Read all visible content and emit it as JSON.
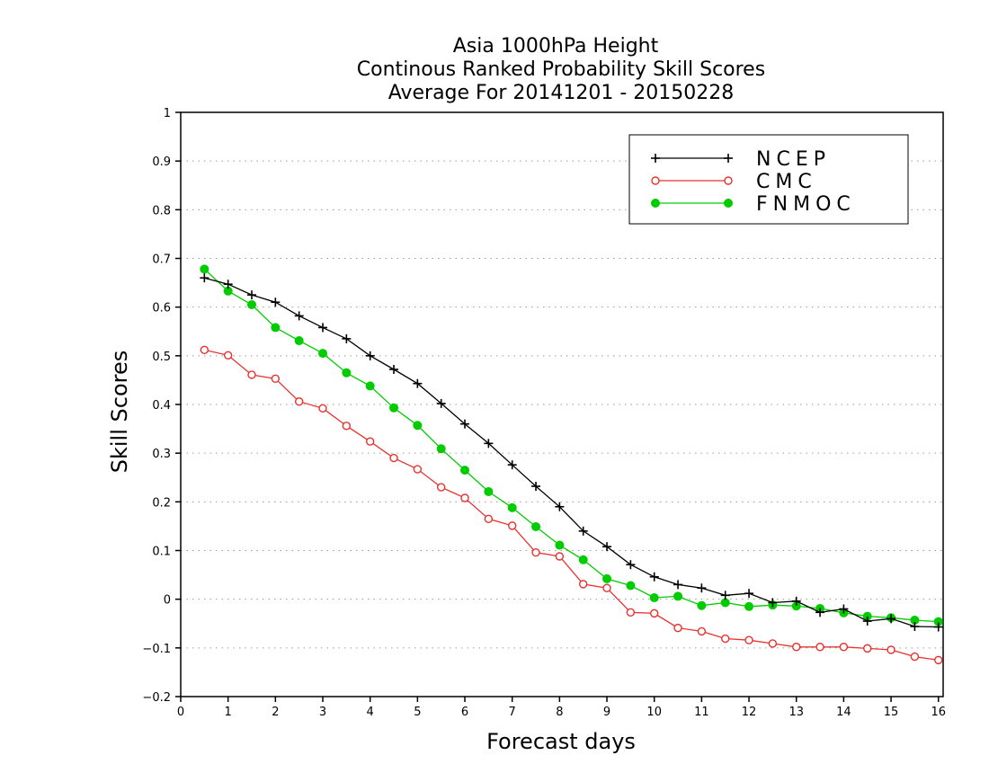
{
  "chart_data": {
    "type": "line",
    "title": [
      "Asia 1000hPa Height",
      "Continous Ranked Probability Skill Scores",
      "Average For 20141201 - 20150228"
    ],
    "xlabel": "Forecast days",
    "ylabel": "Skill Scores",
    "xlim": [
      0,
      16.1
    ],
    "ylim": [
      -0.2,
      1
    ],
    "xticks": [
      0,
      1,
      2,
      3,
      4,
      5,
      6,
      7,
      8,
      9,
      10,
      11,
      12,
      13,
      14,
      15,
      16
    ],
    "yticks": [
      -0.2,
      -0.1,
      0,
      0.1,
      0.2,
      0.3,
      0.4,
      0.5,
      0.6,
      0.7,
      0.8,
      0.9,
      1
    ],
    "ytick_labels": [
      "−0.2",
      "−0.1",
      "0",
      "0.1",
      "0.2",
      "0.3",
      "0.4",
      "0.5",
      "0.6",
      "0.7",
      "0.8",
      "0.9",
      "1"
    ],
    "grid": "horizontal dotted",
    "legend_position": "top-right",
    "x": [
      0.5,
      1,
      1.5,
      2,
      2.5,
      3,
      3.5,
      4,
      4.5,
      5,
      5.5,
      6,
      6.5,
      7,
      7.5,
      8,
      8.5,
      9,
      9.5,
      10,
      10.5,
      11,
      11.5,
      12,
      12.5,
      13,
      13.5,
      14,
      14.5,
      15,
      15.5,
      16
    ],
    "series": [
      {
        "name": "NCEP",
        "color": "#000000",
        "marker": "plus",
        "values": [
          0.66,
          0.647,
          0.625,
          0.61,
          0.582,
          0.558,
          0.535,
          0.5,
          0.472,
          0.443,
          0.402,
          0.36,
          0.32,
          0.276,
          0.232,
          0.19,
          0.14,
          0.108,
          0.071,
          0.046,
          0.03,
          0.023,
          0.008,
          0.012,
          -0.007,
          -0.004,
          -0.027,
          -0.02,
          -0.045,
          -0.04,
          -0.056,
          -0.057
        ]
      },
      {
        "name": "CMC",
        "color": "#e8312f",
        "marker": "open-circle",
        "values": [
          0.512,
          0.501,
          0.461,
          0.453,
          0.406,
          0.392,
          0.356,
          0.324,
          0.29,
          0.267,
          0.23,
          0.208,
          0.165,
          0.151,
          0.096,
          0.088,
          0.031,
          0.023,
          -0.027,
          -0.029,
          -0.059,
          -0.066,
          -0.081,
          -0.084,
          -0.091,
          -0.098,
          -0.098,
          -0.098,
          -0.101,
          -0.104,
          -0.118,
          -0.125
        ]
      },
      {
        "name": "FNMOC",
        "color": "#00cc00",
        "marker": "filled-circle",
        "values": [
          0.678,
          0.633,
          0.605,
          0.558,
          0.531,
          0.505,
          0.465,
          0.438,
          0.393,
          0.357,
          0.309,
          0.265,
          0.221,
          0.188,
          0.149,
          0.111,
          0.081,
          0.042,
          0.028,
          0.003,
          0.006,
          -0.013,
          -0.007,
          -0.015,
          -0.012,
          -0.014,
          -0.019,
          -0.028,
          -0.035,
          -0.038,
          -0.043,
          -0.046
        ]
      }
    ]
  }
}
